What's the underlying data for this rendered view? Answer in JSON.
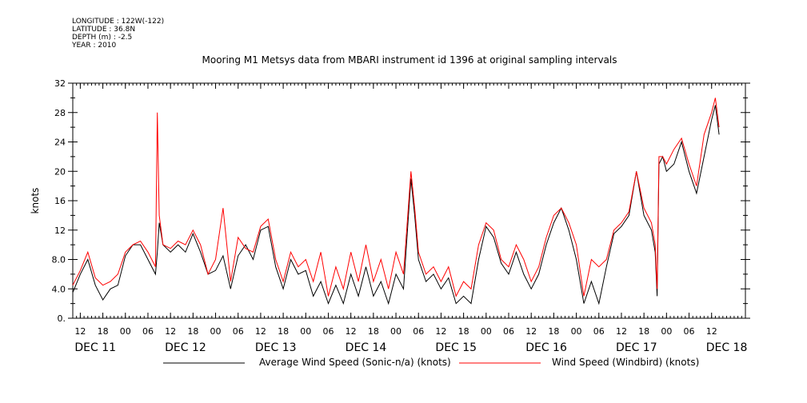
{
  "header": {
    "meta_lines": [
      "LONGITUDE : 122W(-122)",
      "LATITUDE : 36.8N",
      "DEPTH (m) : -2.5",
      "YEAR : 2010"
    ]
  },
  "chart_data": {
    "type": "line",
    "title": "Mooring M1 Metsys data from MBARI instrument id 1396 at original sampling intervals",
    "ylabel": "knots",
    "xlabel": "",
    "ylim": [
      0,
      32
    ],
    "yticks": [
      "0.",
      "4.0",
      "8.0",
      "12",
      "16",
      "20",
      "24",
      "28",
      "32"
    ],
    "xlim": [
      "2010-12-11 10:00",
      "2010-12-18 21:00"
    ],
    "xtick_labels": [
      {
        "t": "2010-12-11 12:00",
        "label": "12"
      },
      {
        "t": "2010-12-11 18:00",
        "label": "18"
      },
      {
        "t": "2010-12-12 00:00",
        "label": "00"
      },
      {
        "t": "2010-12-12 06:00",
        "label": "06"
      },
      {
        "t": "2010-12-12 12:00",
        "label": "12"
      },
      {
        "t": "2010-12-12 18:00",
        "label": "18"
      },
      {
        "t": "2010-12-13 00:00",
        "label": "00"
      },
      {
        "t": "2010-12-13 06:00",
        "label": "06"
      },
      {
        "t": "2010-12-13 12:00",
        "label": "12"
      },
      {
        "t": "2010-12-13 18:00",
        "label": "18"
      },
      {
        "t": "2010-12-14 00:00",
        "label": "00"
      },
      {
        "t": "2010-12-14 06:00",
        "label": "06"
      },
      {
        "t": "2010-12-14 12:00",
        "label": "12"
      },
      {
        "t": "2010-12-14 18:00",
        "label": "18"
      },
      {
        "t": "2010-12-15 00:00",
        "label": "00"
      },
      {
        "t": "2010-12-15 06:00",
        "label": "06"
      },
      {
        "t": "2010-12-15 12:00",
        "label": "12"
      },
      {
        "t": "2010-12-15 18:00",
        "label": "18"
      },
      {
        "t": "2010-12-16 00:00",
        "label": "00"
      },
      {
        "t": "2010-12-16 06:00",
        "label": "06"
      },
      {
        "t": "2010-12-16 12:00",
        "label": "12"
      },
      {
        "t": "2010-12-16 18:00",
        "label": "18"
      },
      {
        "t": "2010-12-17 00:00",
        "label": "00"
      },
      {
        "t": "2010-12-17 06:00",
        "label": "06"
      },
      {
        "t": "2010-12-17 12:00",
        "label": "12"
      },
      {
        "t": "2010-12-17 18:00",
        "label": "18"
      },
      {
        "t": "2010-12-18 00:00",
        "label": "00"
      },
      {
        "t": "2010-12-18 06:00",
        "label": "06"
      },
      {
        "t": "2010-12-18 12:00",
        "label": "12"
      }
    ],
    "day_labels": [
      {
        "t": "2010-12-11 12:00",
        "label": "DEC 11"
      },
      {
        "t": "2010-12-12 12:00",
        "label": "DEC 12"
      },
      {
        "t": "2010-12-13 12:00",
        "label": "DEC 13"
      },
      {
        "t": "2010-12-14 12:00",
        "label": "DEC 14"
      },
      {
        "t": "2010-12-15 12:00",
        "label": "DEC 15"
      },
      {
        "t": "2010-12-16 12:00",
        "label": "DEC 16"
      },
      {
        "t": "2010-12-17 12:00",
        "label": "DEC 17"
      },
      {
        "t": "2010-12-18 12:00",
        "label": "DEC 18"
      }
    ],
    "grid": false,
    "legend": "bottom",
    "series": [
      {
        "name": "Average Wind Speed (Sonic-n/a) (knots)",
        "color": "#000000",
        "x": [
          "2010-12-11 10:00",
          "2010-12-11 12:00",
          "2010-12-11 14:00",
          "2010-12-11 16:00",
          "2010-12-11 18:00",
          "2010-12-11 20:00",
          "2010-12-11 22:00",
          "2010-12-12 00:00",
          "2010-12-12 02:00",
          "2010-12-12 04:00",
          "2010-12-12 06:00",
          "2010-12-12 08:00",
          "2010-12-12 08:30",
          "2010-12-12 09:00",
          "2010-12-12 10:00",
          "2010-12-12 12:00",
          "2010-12-12 14:00",
          "2010-12-12 16:00",
          "2010-12-12 18:00",
          "2010-12-12 20:00",
          "2010-12-12 22:00",
          "2010-12-13 00:00",
          "2010-12-13 02:00",
          "2010-12-13 04:00",
          "2010-12-13 06:00",
          "2010-12-13 08:00",
          "2010-12-13 10:00",
          "2010-12-13 12:00",
          "2010-12-13 14:00",
          "2010-12-13 16:00",
          "2010-12-13 18:00",
          "2010-12-13 20:00",
          "2010-12-13 22:00",
          "2010-12-14 00:00",
          "2010-12-14 02:00",
          "2010-12-14 04:00",
          "2010-12-14 06:00",
          "2010-12-14 08:00",
          "2010-12-14 10:00",
          "2010-12-14 12:00",
          "2010-12-14 14:00",
          "2010-12-14 16:00",
          "2010-12-14 18:00",
          "2010-12-14 20:00",
          "2010-12-14 22:00",
          "2010-12-15 00:00",
          "2010-12-15 02:00",
          "2010-12-15 04:00",
          "2010-12-15 05:00",
          "2010-12-15 06:00",
          "2010-12-15 08:00",
          "2010-12-15 10:00",
          "2010-12-15 12:00",
          "2010-12-15 14:00",
          "2010-12-15 16:00",
          "2010-12-15 18:00",
          "2010-12-15 20:00",
          "2010-12-15 22:00",
          "2010-12-16 00:00",
          "2010-12-16 02:00",
          "2010-12-16 04:00",
          "2010-12-16 06:00",
          "2010-12-16 08:00",
          "2010-12-16 10:00",
          "2010-12-16 12:00",
          "2010-12-16 14:00",
          "2010-12-16 16:00",
          "2010-12-16 18:00",
          "2010-12-16 20:00",
          "2010-12-16 22:00",
          "2010-12-17 00:00",
          "2010-12-17 02:00",
          "2010-12-17 04:00",
          "2010-12-17 06:00",
          "2010-12-17 08:00",
          "2010-12-17 10:00",
          "2010-12-17 12:00",
          "2010-12-17 14:00",
          "2010-12-17 16:00",
          "2010-12-17 18:00",
          "2010-12-17 20:00",
          "2010-12-17 21:00",
          "2010-12-17 21:30",
          "2010-12-17 22:00",
          "2010-12-17 23:00",
          "2010-12-18 00:00",
          "2010-12-18 02:00",
          "2010-12-18 04:00",
          "2010-12-18 06:00",
          "2010-12-18 08:00",
          "2010-12-18 10:00",
          "2010-12-18 12:00",
          "2010-12-18 13:00",
          "2010-12-18 14:00"
        ],
        "y": [
          3.5,
          6,
          8,
          4.5,
          2.5,
          4,
          4.5,
          8.5,
          10,
          10,
          8,
          6,
          9,
          13,
          10,
          9,
          10,
          9,
          11.5,
          9,
          6,
          6.5,
          8.5,
          4,
          8.5,
          10,
          8,
          12,
          12.5,
          7,
          4,
          8,
          6,
          6.5,
          3,
          5,
          2,
          4.5,
          2,
          6,
          3,
          7,
          3,
          5,
          2,
          6,
          4,
          19,
          14,
          8,
          5,
          6,
          4,
          5.5,
          2,
          3,
          2,
          8,
          12.5,
          11,
          7.5,
          6,
          9,
          6,
          4,
          6,
          10,
          13,
          15,
          12,
          8,
          2,
          5,
          2,
          7,
          11.5,
          12.5,
          14,
          20,
          14,
          12,
          9,
          3,
          21,
          22,
          20,
          21,
          24,
          20,
          17,
          22,
          27,
          29,
          25
        ]
      },
      {
        "name": "Wind Speed (Windbird) (knots)",
        "color": "#ff0000",
        "x": [
          "2010-12-11 10:00",
          "2010-12-11 12:00",
          "2010-12-11 14:00",
          "2010-12-11 16:00",
          "2010-12-11 18:00",
          "2010-12-11 20:00",
          "2010-12-11 22:00",
          "2010-12-12 00:00",
          "2010-12-12 02:00",
          "2010-12-12 04:00",
          "2010-12-12 06:00",
          "2010-12-12 08:00",
          "2010-12-12 08:30",
          "2010-12-12 09:00",
          "2010-12-12 10:00",
          "2010-12-12 12:00",
          "2010-12-12 14:00",
          "2010-12-12 16:00",
          "2010-12-12 18:00",
          "2010-12-12 20:00",
          "2010-12-12 22:00",
          "2010-12-13 00:00",
          "2010-12-13 02:00",
          "2010-12-13 04:00",
          "2010-12-13 06:00",
          "2010-12-13 08:00",
          "2010-12-13 10:00",
          "2010-12-13 12:00",
          "2010-12-13 14:00",
          "2010-12-13 16:00",
          "2010-12-13 18:00",
          "2010-12-13 20:00",
          "2010-12-13 22:00",
          "2010-12-14 00:00",
          "2010-12-14 02:00",
          "2010-12-14 04:00",
          "2010-12-14 06:00",
          "2010-12-14 08:00",
          "2010-12-14 10:00",
          "2010-12-14 12:00",
          "2010-12-14 14:00",
          "2010-12-14 16:00",
          "2010-12-14 18:00",
          "2010-12-14 20:00",
          "2010-12-14 22:00",
          "2010-12-15 00:00",
          "2010-12-15 02:00",
          "2010-12-15 04:00",
          "2010-12-15 05:00",
          "2010-12-15 06:00",
          "2010-12-15 08:00",
          "2010-12-15 10:00",
          "2010-12-15 12:00",
          "2010-12-15 14:00",
          "2010-12-15 16:00",
          "2010-12-15 18:00",
          "2010-12-15 20:00",
          "2010-12-15 22:00",
          "2010-12-16 00:00",
          "2010-12-16 02:00",
          "2010-12-16 04:00",
          "2010-12-16 06:00",
          "2010-12-16 08:00",
          "2010-12-16 10:00",
          "2010-12-16 12:00",
          "2010-12-16 14:00",
          "2010-12-16 16:00",
          "2010-12-16 18:00",
          "2010-12-16 20:00",
          "2010-12-16 22:00",
          "2010-12-17 00:00",
          "2010-12-17 02:00",
          "2010-12-17 04:00",
          "2010-12-17 06:00",
          "2010-12-17 08:00",
          "2010-12-17 10:00",
          "2010-12-17 12:00",
          "2010-12-17 14:00",
          "2010-12-17 16:00",
          "2010-12-17 18:00",
          "2010-12-17 20:00",
          "2010-12-17 21:00",
          "2010-12-17 21:30",
          "2010-12-17 22:00",
          "2010-12-17 23:00",
          "2010-12-18 00:00",
          "2010-12-18 02:00",
          "2010-12-18 04:00",
          "2010-12-18 06:00",
          "2010-12-18 08:00",
          "2010-12-18 10:00",
          "2010-12-18 12:00",
          "2010-12-18 13:00",
          "2010-12-18 14:00"
        ],
        "y": [
          4.5,
          6.5,
          9,
          5.5,
          4.5,
          5,
          6,
          9,
          10,
          10.5,
          9,
          7,
          28,
          14,
          10,
          9.5,
          10.5,
          10,
          12,
          10,
          6,
          8,
          15,
          5,
          11,
          9.5,
          9,
          12.5,
          13.5,
          8,
          5,
          9,
          7,
          8,
          5,
          9,
          3,
          7,
          4,
          9,
          5,
          10,
          5,
          8,
          4,
          9,
          6,
          20,
          15,
          9,
          6,
          7,
          5,
          7,
          3,
          5,
          4,
          10,
          13,
          12,
          8,
          7,
          10,
          8,
          5,
          7,
          11,
          14,
          15,
          13,
          10,
          3,
          8,
          7,
          8,
          12,
          13,
          14.5,
          20,
          15,
          13,
          10,
          4,
          22,
          22,
          21,
          23,
          24.5,
          21,
          18,
          25,
          28,
          30,
          26
        ]
      }
    ]
  }
}
